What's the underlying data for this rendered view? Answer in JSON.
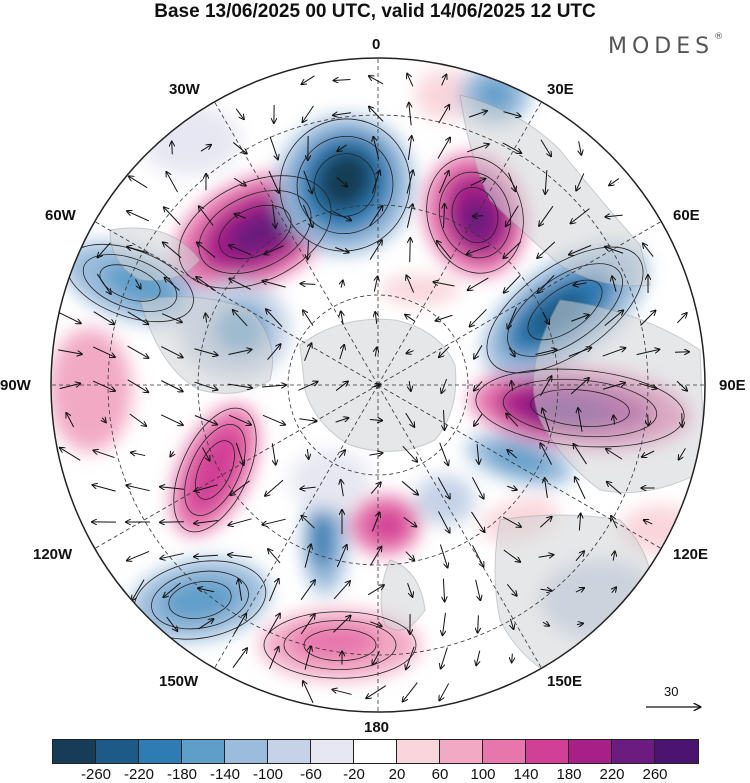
{
  "title": "Base 13/06/2025 00 UTC, valid 14/06/2025 12 UTC",
  "logo": "MODES",
  "logo_mark": "®",
  "longitude_labels": {
    "lon_0": "0",
    "lon_30e": "30E",
    "lon_60e": "60E",
    "lon_90e": "90E",
    "lon_120e": "120E",
    "lon_150e": "150E",
    "lon_180": "180",
    "lon_150w": "150W",
    "lon_120w": "120W",
    "lon_90w": "90W",
    "lon_60w": "60W",
    "lon_30w": "30W"
  },
  "reference_vector": "30",
  "colorbar": {
    "labels": [
      "-260",
      "-220",
      "-180",
      "-140",
      "-100",
      "-60",
      "-20",
      "20",
      "60",
      "100",
      "140",
      "180",
      "220",
      "260"
    ],
    "colors": [
      "#163c57",
      "#1e5a87",
      "#2f7bb3",
      "#5f9ec9",
      "#9bbcdc",
      "#c5d2e7",
      "#e6e7f2",
      "#ffffff",
      "#f9d6dc",
      "#f2aac4",
      "#e776ad",
      "#d23f96",
      "#a91f88",
      "#6b1c7e",
      "#4a1470"
    ]
  },
  "map_colors": {
    "land": "#d2d4d6",
    "coast": "#9aa0a6",
    "frame": "#222222",
    "grid": "#333333"
  }
}
